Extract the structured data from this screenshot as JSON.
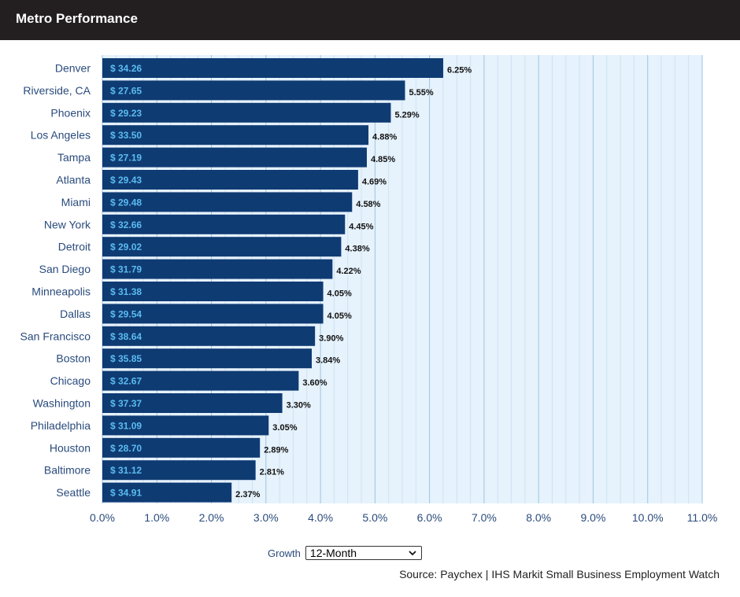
{
  "header": {
    "title": "Metro Performance"
  },
  "controls": {
    "growth_label": "Growth",
    "growth_value": "12-Month"
  },
  "footer": {
    "source": "Source: Paychex | IHS Markit Small Business Employment Watch"
  },
  "colors": {
    "bar": "#0f3b73",
    "bar_label": "#5bbcf0",
    "plot_bg": "#e6f2fc",
    "grid": "#9ec6df",
    "header_bg": "#231f20"
  },
  "chart_data": {
    "type": "bar",
    "orientation": "horizontal",
    "categories": [
      "Denver",
      "Riverside, CA",
      "Phoenix",
      "Los Angeles",
      "Tampa",
      "Atlanta",
      "Miami",
      "New York",
      "Detroit",
      "San Diego",
      "Minneapolis",
      "Dallas",
      "San Francisco",
      "Boston",
      "Chicago",
      "Washington",
      "Philadelphia",
      "Houston",
      "Baltimore",
      "Seattle"
    ],
    "values": [
      6.25,
      5.55,
      5.29,
      4.88,
      4.85,
      4.69,
      4.58,
      4.45,
      4.38,
      4.22,
      4.05,
      4.05,
      3.9,
      3.84,
      3.6,
      3.3,
      3.05,
      2.89,
      2.81,
      2.37
    ],
    "value_labels": [
      "6.25%",
      "5.55%",
      "5.29%",
      "4.88%",
      "4.85%",
      "4.69%",
      "4.58%",
      "4.45%",
      "4.38%",
      "4.22%",
      "4.05%",
      "4.05%",
      "3.90%",
      "3.84%",
      "3.60%",
      "3.30%",
      "3.05%",
      "2.89%",
      "2.81%",
      "2.37%"
    ],
    "bar_labels": [
      "$ 34.26",
      "$ 27.65",
      "$ 29.23",
      "$ 33.50",
      "$ 27.19",
      "$ 29.43",
      "$ 29.48",
      "$ 32.66",
      "$ 29.02",
      "$ 31.79",
      "$ 31.38",
      "$ 29.54",
      "$ 38.64",
      "$ 35.85",
      "$ 32.67",
      "$ 37.37",
      "$ 31.09",
      "$ 28.70",
      "$ 31.12",
      "$ 34.91"
    ],
    "x_ticks": [
      "0.0%",
      "1.0%",
      "2.0%",
      "3.0%",
      "4.0%",
      "5.0%",
      "6.0%",
      "7.0%",
      "8.0%",
      "9.0%",
      "10.0%",
      "11.0%"
    ],
    "xlim": [
      0,
      11
    ],
    "grid": true,
    "title": "",
    "xlabel": "",
    "ylabel": ""
  }
}
